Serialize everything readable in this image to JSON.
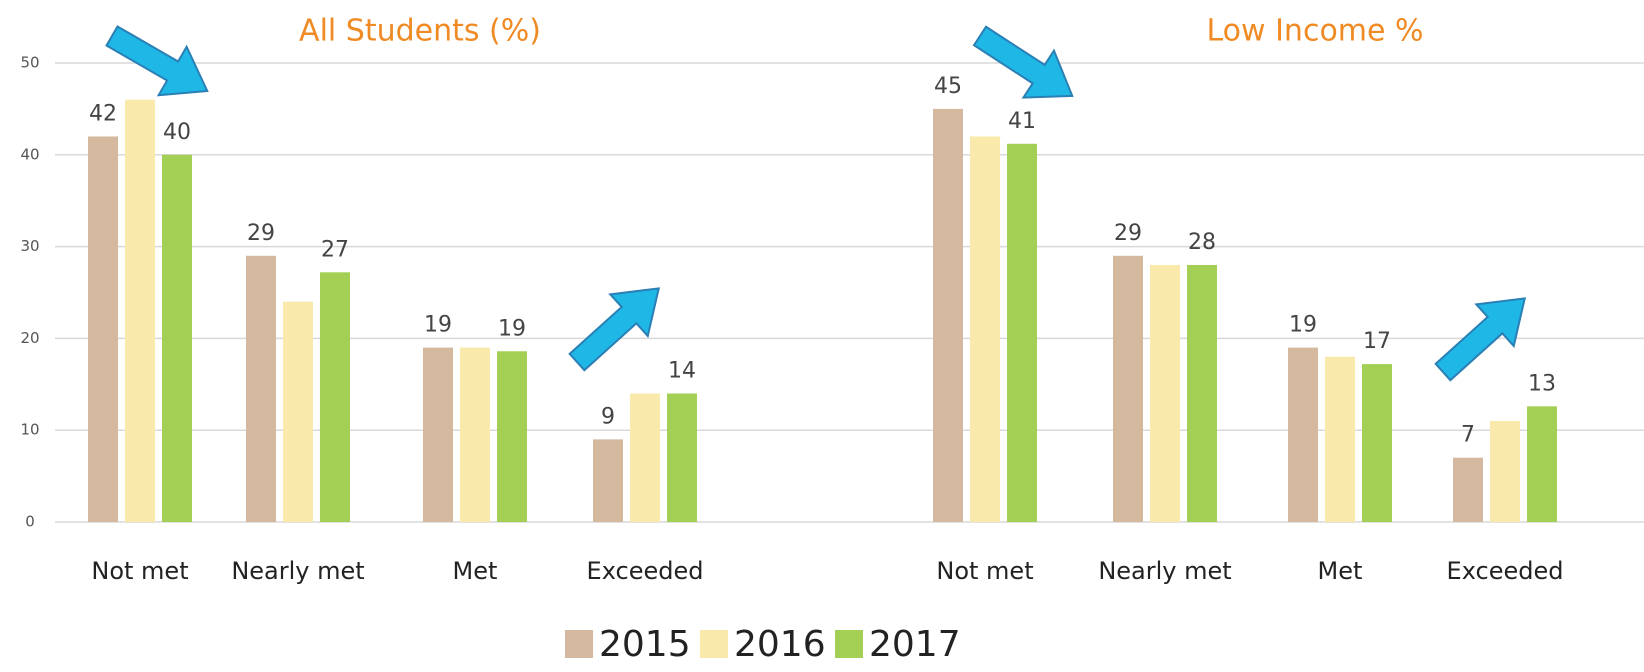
{
  "chart_data": {
    "type": "bar",
    "ylim": [
      0,
      50
    ],
    "yticks": [
      0,
      10,
      20,
      30,
      40,
      50
    ],
    "grid": true,
    "legend": "bottom",
    "series": [
      {
        "name": "2015",
        "color": "#d4b99e"
      },
      {
        "name": "2016",
        "color": "#f9eaab"
      },
      {
        "name": "2017",
        "color": "#a3cf55"
      }
    ],
    "panels": [
      {
        "title": "All Students (%)",
        "categories": [
          "Not met",
          "Nearly met",
          "Met",
          "Exceeded"
        ],
        "series": [
          {
            "values": [
              42,
              29,
              19,
              9
            ],
            "show_labels": true
          },
          {
            "values": [
              46,
              24,
              19,
              14
            ],
            "show_labels": false
          },
          {
            "values": [
              40,
              27.2,
              18.6,
              14
            ],
            "value_labels": [
              "40",
              "27",
              "19",
              "14"
            ],
            "show_labels": true
          }
        ]
      },
      {
        "title": "Low Income %",
        "categories": [
          "Not met",
          "Nearly met",
          "Met",
          "Exceeded"
        ],
        "series": [
          {
            "values": [
              45,
              29,
              19,
              7
            ],
            "show_labels": true
          },
          {
            "values": [
              42,
              28,
              18,
              11
            ],
            "show_labels": false
          },
          {
            "values": [
              41.2,
              28,
              17.2,
              12.6
            ],
            "value_labels": [
              "41",
              "28",
              "17",
              "13"
            ],
            "show_labels": true
          }
        ]
      }
    ]
  }
}
